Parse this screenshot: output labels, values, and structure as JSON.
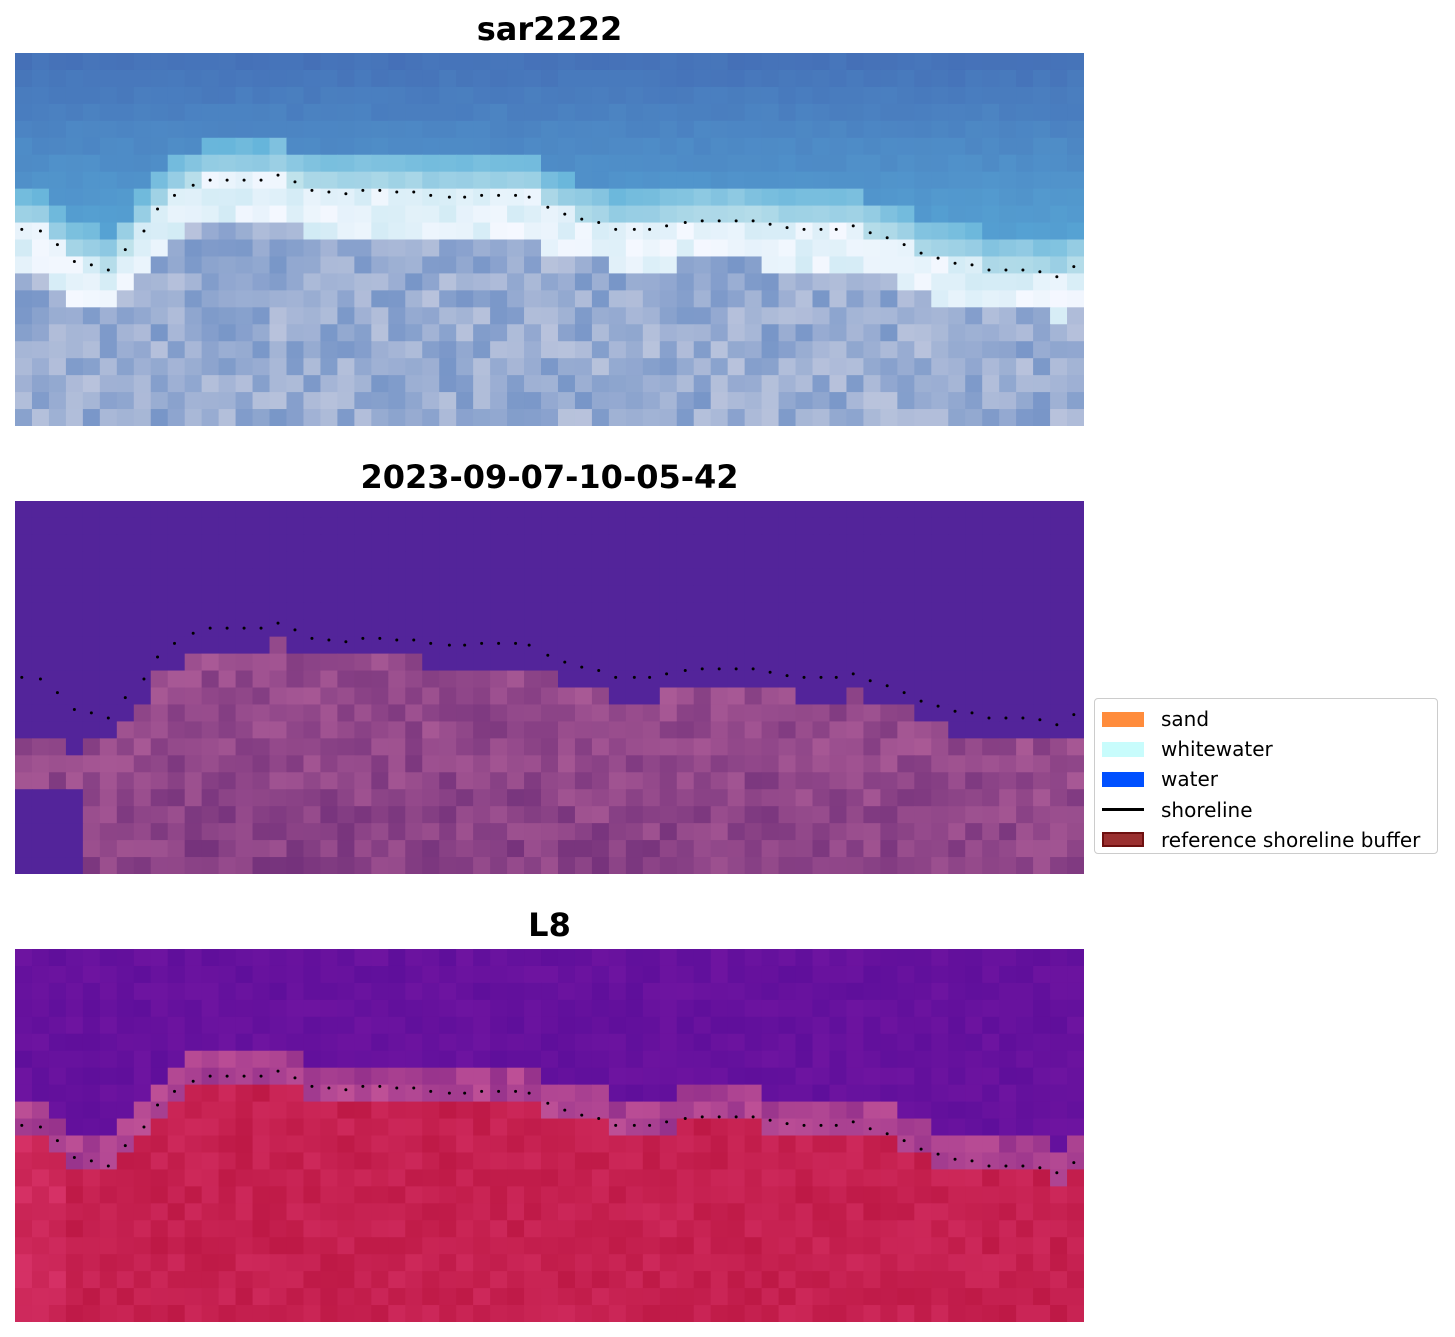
{
  "chart_data": [
    {
      "type": "heatmap",
      "title": "sar2222",
      "style": "rgb-image",
      "grid": false,
      "axes": "off",
      "cols": 63,
      "rows": 22
    },
    {
      "type": "heatmap",
      "title": "2023-09-07-10-05-42",
      "style": "classified-image",
      "grid": false,
      "axes": "off",
      "cols": 63,
      "rows": 22
    },
    {
      "type": "heatmap",
      "title": "L8",
      "style": "false-color-image",
      "grid": false,
      "axes": "off",
      "cols": 63,
      "rows": 22
    }
  ],
  "shoreline_points": [
    [
      0.4,
      10.4
    ],
    [
      1.5,
      10.5
    ],
    [
      2.5,
      11.3
    ],
    [
      3.5,
      12.3
    ],
    [
      4.5,
      12.5
    ],
    [
      5.5,
      12.8
    ],
    [
      6.5,
      11.6
    ],
    [
      7.6,
      10.5
    ],
    [
      8.4,
      9.2
    ],
    [
      9.4,
      8.4
    ],
    [
      10.5,
      7.8
    ],
    [
      11.5,
      7.5
    ],
    [
      12.5,
      7.5
    ],
    [
      13.5,
      7.5
    ],
    [
      14.5,
      7.5
    ],
    [
      15.5,
      7.2
    ],
    [
      16.5,
      7.6
    ],
    [
      17.5,
      8.1
    ],
    [
      18.5,
      8.2
    ],
    [
      19.5,
      8.3
    ],
    [
      20.5,
      8.1
    ],
    [
      21.5,
      8.1
    ],
    [
      22.5,
      8.2
    ],
    [
      23.5,
      8.2
    ],
    [
      24.5,
      8.4
    ],
    [
      25.6,
      8.5
    ],
    [
      26.5,
      8.5
    ],
    [
      27.5,
      8.4
    ],
    [
      28.5,
      8.4
    ],
    [
      29.5,
      8.4
    ],
    [
      30.3,
      8.5
    ],
    [
      31.4,
      9.1
    ],
    [
      32.4,
      9.5
    ],
    [
      33.4,
      9.8
    ],
    [
      34.4,
      10.0
    ],
    [
      35.4,
      10.4
    ],
    [
      36.5,
      10.4
    ],
    [
      37.4,
      10.4
    ],
    [
      38.4,
      10.2
    ],
    [
      39.5,
      10.0
    ],
    [
      40.5,
      9.9
    ],
    [
      41.5,
      9.9
    ],
    [
      42.5,
      9.9
    ],
    [
      43.5,
      9.9
    ],
    [
      44.5,
      10.1
    ],
    [
      45.5,
      10.3
    ],
    [
      46.5,
      10.4
    ],
    [
      47.5,
      10.4
    ],
    [
      48.4,
      10.4
    ],
    [
      49.4,
      10.2
    ],
    [
      50.4,
      10.6
    ],
    [
      51.4,
      10.9
    ],
    [
      52.4,
      11.3
    ],
    [
      53.4,
      11.8
    ],
    [
      54.4,
      12.1
    ],
    [
      55.4,
      12.4
    ],
    [
      56.4,
      12.5
    ],
    [
      57.4,
      12.8
    ],
    [
      58.4,
      12.8
    ],
    [
      59.4,
      12.8
    ],
    [
      60.4,
      12.9
    ],
    [
      61.4,
      13.2
    ],
    [
      62.4,
      12.6
    ]
  ],
  "legend": {
    "placement": "right",
    "items": [
      {
        "label": "sand",
        "color": "#ff8c3c",
        "kind": "patch"
      },
      {
        "label": "whitewater",
        "color": "#c8fcfc",
        "kind": "patch"
      },
      {
        "label": "water",
        "color": "#0050ff",
        "kind": "patch"
      },
      {
        "label": "shoreline",
        "color": "#000000",
        "kind": "line"
      },
      {
        "label": "reference shoreline buffer",
        "color": "#9a3030",
        "kind": "patch"
      }
    ]
  }
}
